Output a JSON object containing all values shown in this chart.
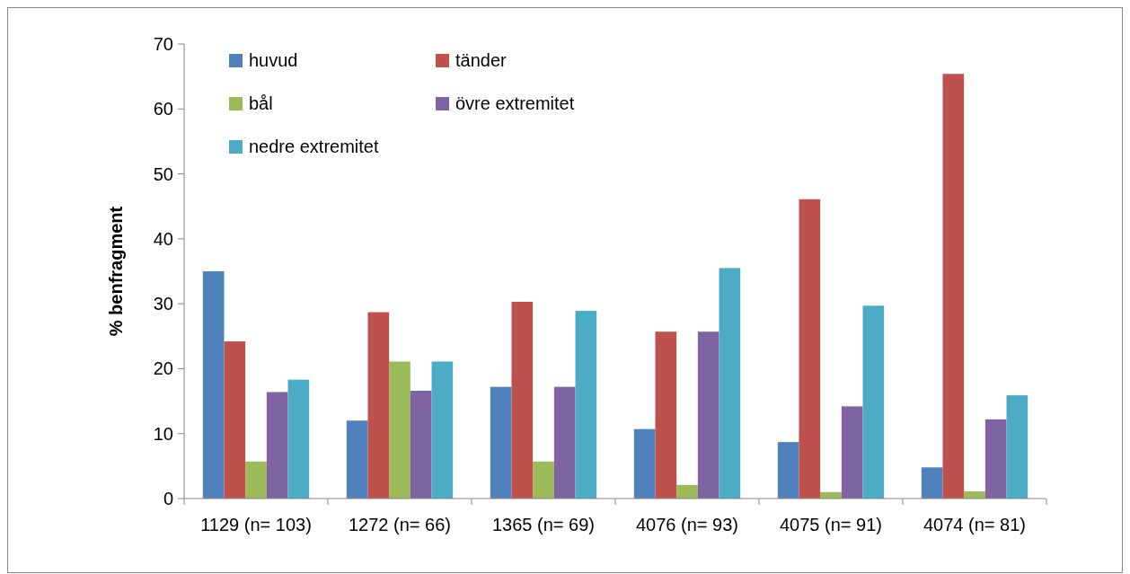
{
  "chart_data": {
    "type": "bar",
    "ylabel": "% benfragment",
    "categories": [
      "1129 (n= 103)",
      "1272 (n= 66)",
      "1365 (n= 69)",
      "4076 (n= 93)",
      "4075 (n= 91)",
      "4074 (n= 81)"
    ],
    "series": [
      {
        "name": "huvud",
        "color": "#4f81bd",
        "values": [
          35,
          12,
          17.2,
          10.7,
          8.7,
          4.8
        ]
      },
      {
        "name": "tänder",
        "color": "#c0504d",
        "values": [
          24.2,
          28.7,
          30.3,
          25.7,
          46.1,
          65.4
        ]
      },
      {
        "name": "bål",
        "color": "#9bbb59",
        "values": [
          5.7,
          21.1,
          5.7,
          2.1,
          1.0,
          1.1
        ]
      },
      {
        "name": "övre extremitet",
        "color": "#8064a2",
        "values": [
          16.4,
          16.6,
          17.2,
          25.7,
          14.2,
          12.2
        ]
      },
      {
        "name": "nedre extremitet",
        "color": "#4bacc6",
        "values": [
          18.3,
          21.1,
          28.9,
          35.5,
          29.7,
          15.9
        ]
      }
    ],
    "ylim": [
      0,
      70
    ],
    "yticks": [
      0,
      10,
      20,
      30,
      40,
      50,
      60,
      70
    ],
    "legend": "top left"
  }
}
